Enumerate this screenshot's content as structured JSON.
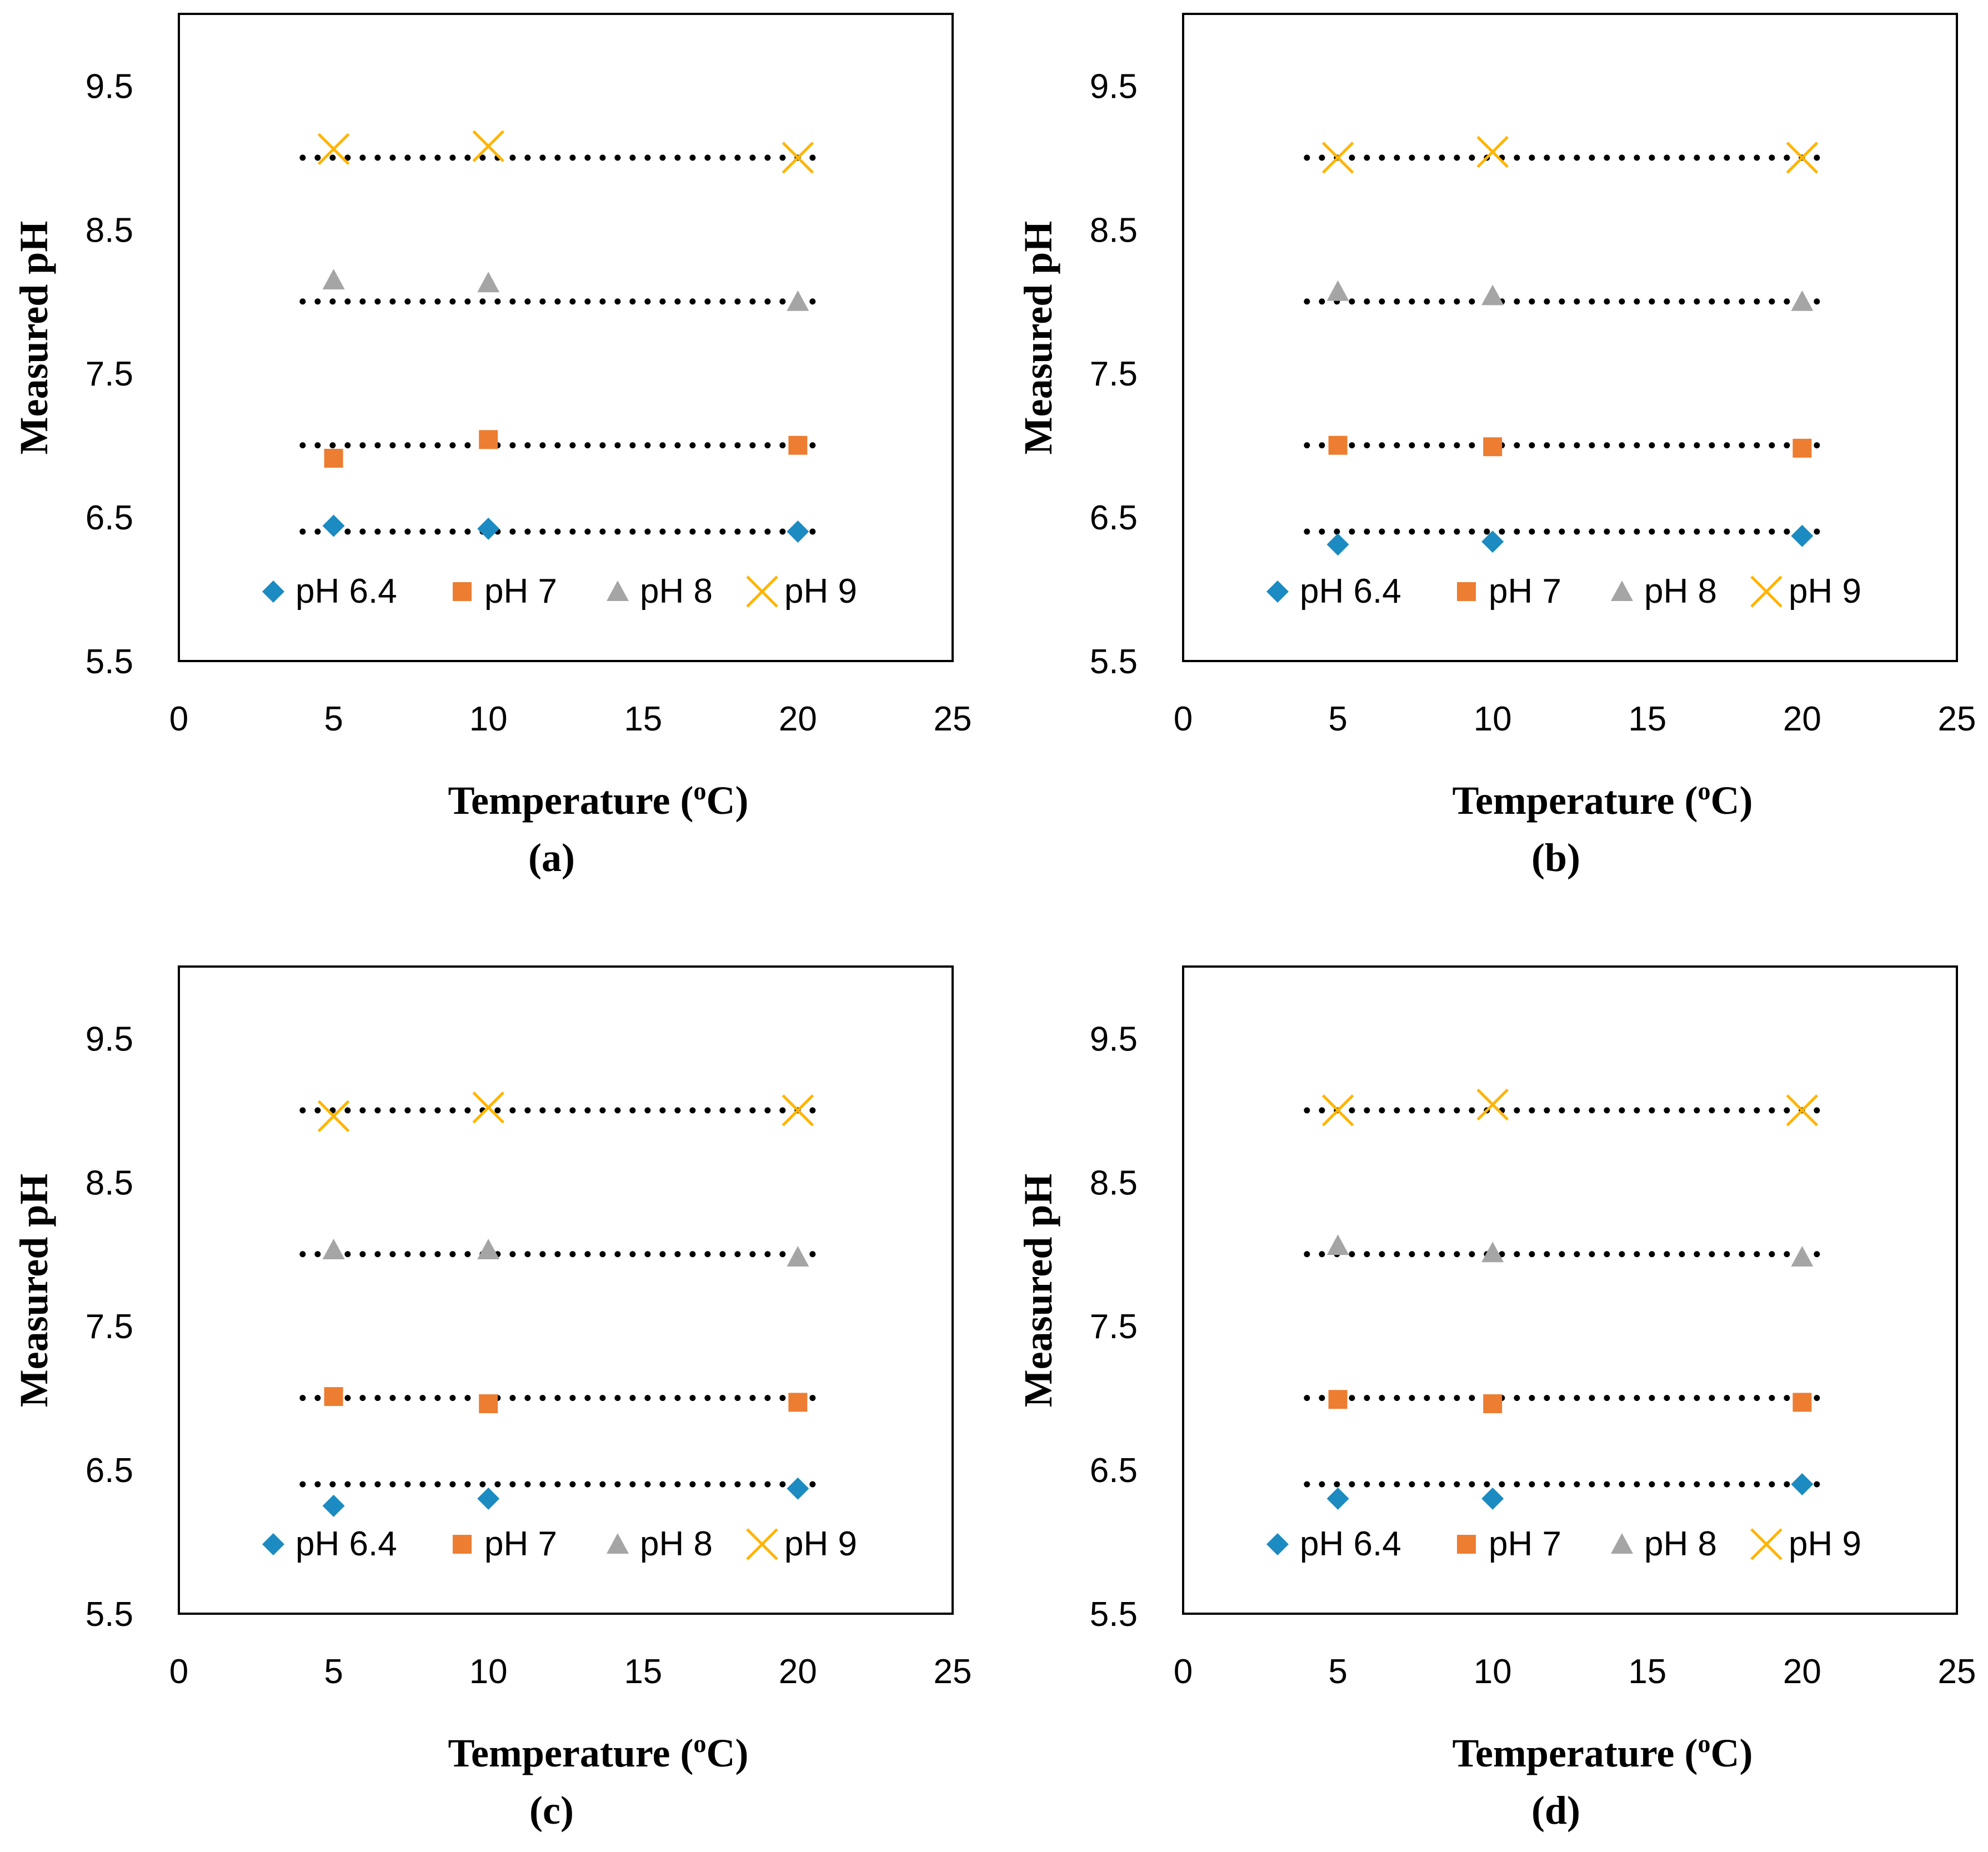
{
  "chart_data": [
    {
      "type": "scatter",
      "panel_label": "(a)",
      "xlabel": "Temperature (",
      "xlabel_sup": "o",
      "xlabel_suffix": "C)",
      "ylabel": "Measured pH",
      "xlim": [
        0,
        25
      ],
      "ylim": [
        5.5,
        10
      ],
      "xticks": [
        "0",
        "5",
        "10",
        "15",
        "20",
        "25"
      ],
      "yticks": [
        "5.5",
        "6.5",
        "7.5",
        "8.5",
        "9.5"
      ],
      "legend_position": "bottom",
      "series": [
        {
          "name": "pH 6.4",
          "marker": "diamond",
          "color": "#1B8BC1",
          "x": [
            5,
            10,
            20
          ],
          "y": [
            6.44,
            6.42,
            6.4
          ],
          "reference": 6.4
        },
        {
          "name": "pH 7",
          "marker": "square",
          "color": "#ED7D31",
          "x": [
            5,
            10,
            20
          ],
          "y": [
            6.91,
            7.04,
            7.0
          ],
          "reference": 7
        },
        {
          "name": "pH 8",
          "marker": "triangle",
          "color": "#A5A5A5",
          "x": [
            5,
            10,
            20
          ],
          "y": [
            8.15,
            8.13,
            8.0
          ],
          "reference": 8
        },
        {
          "name": "pH 9",
          "marker": "x",
          "color": "#FFB400",
          "x": [
            5,
            10,
            20
          ],
          "y": [
            9.06,
            9.08,
            9.0
          ],
          "reference": 9
        }
      ]
    },
    {
      "type": "scatter",
      "panel_label": "(b)",
      "xlabel": "Temperature (",
      "xlabel_sup": "o",
      "xlabel_suffix": "C)",
      "ylabel": "Measured pH",
      "xlim": [
        0,
        25
      ],
      "ylim": [
        5.5,
        10
      ],
      "xticks": [
        "0",
        "5",
        "10",
        "15",
        "20",
        "25"
      ],
      "yticks": [
        "5.5",
        "6.5",
        "7.5",
        "8.5",
        "9.5"
      ],
      "legend_position": "bottom",
      "series": [
        {
          "name": "pH 6.4",
          "marker": "diamond",
          "color": "#1B8BC1",
          "x": [
            5,
            10,
            20
          ],
          "y": [
            6.31,
            6.33,
            6.37
          ],
          "reference": 6.4
        },
        {
          "name": "pH 7",
          "marker": "square",
          "color": "#ED7D31",
          "x": [
            5,
            10,
            20
          ],
          "y": [
            7.0,
            6.99,
            6.98
          ],
          "reference": 7
        },
        {
          "name": "pH 8",
          "marker": "triangle",
          "color": "#A5A5A5",
          "x": [
            5,
            10,
            20
          ],
          "y": [
            8.07,
            8.04,
            8.0
          ],
          "reference": 8
        },
        {
          "name": "pH 9",
          "marker": "x",
          "color": "#FFB400",
          "x": [
            5,
            10,
            20
          ],
          "y": [
            9.0,
            9.04,
            9.0
          ],
          "reference": 9
        }
      ]
    },
    {
      "type": "scatter",
      "panel_label": "(c)",
      "xlabel": "Temperature (",
      "xlabel_sup": "o",
      "xlabel_suffix": "C)",
      "ylabel": "Measured pH",
      "xlim": [
        0,
        25
      ],
      "ylim": [
        5.5,
        10
      ],
      "xticks": [
        "0",
        "5",
        "10",
        "15",
        "20",
        "25"
      ],
      "yticks": [
        "5.5",
        "6.5",
        "7.5",
        "8.5",
        "9.5"
      ],
      "legend_position": "bottom",
      "series": [
        {
          "name": "pH 6.4",
          "marker": "diamond",
          "color": "#1B8BC1",
          "x": [
            5,
            10,
            20
          ],
          "y": [
            6.25,
            6.3,
            6.37
          ],
          "reference": 6.4
        },
        {
          "name": "pH 7",
          "marker": "square",
          "color": "#ED7D31",
          "x": [
            5,
            10,
            20
          ],
          "y": [
            7.01,
            6.96,
            6.97
          ],
          "reference": 7
        },
        {
          "name": "pH 8",
          "marker": "triangle",
          "color": "#A5A5A5",
          "x": [
            5,
            10,
            20
          ],
          "y": [
            8.03,
            8.03,
            7.98
          ],
          "reference": 8
        },
        {
          "name": "pH 9",
          "marker": "x",
          "color": "#FFB400",
          "x": [
            5,
            10,
            20
          ],
          "y": [
            8.96,
            9.02,
            9.0
          ],
          "reference": 9
        }
      ]
    },
    {
      "type": "scatter",
      "panel_label": "(d)",
      "xlabel": "Temperature (",
      "xlabel_sup": "o",
      "xlabel_suffix": "C)",
      "ylabel": "Measured pH",
      "xlim": [
        0,
        25
      ],
      "ylim": [
        5.5,
        10
      ],
      "xticks": [
        "0",
        "5",
        "10",
        "15",
        "20",
        "25"
      ],
      "yticks": [
        "5.5",
        "6.5",
        "7.5",
        "8.5",
        "9.5"
      ],
      "legend_position": "bottom",
      "series": [
        {
          "name": "pH 6.4",
          "marker": "diamond",
          "color": "#1B8BC1",
          "x": [
            5,
            10,
            20
          ],
          "y": [
            6.3,
            6.3,
            6.4
          ],
          "reference": 6.4
        },
        {
          "name": "pH 7",
          "marker": "square",
          "color": "#ED7D31",
          "x": [
            5,
            10,
            20
          ],
          "y": [
            6.99,
            6.96,
            6.97
          ],
          "reference": 7
        },
        {
          "name": "pH 8",
          "marker": "triangle",
          "color": "#A5A5A5",
          "x": [
            5,
            10,
            20
          ],
          "y": [
            8.06,
            8.01,
            7.98
          ],
          "reference": 8
        },
        {
          "name": "pH 9",
          "marker": "x",
          "color": "#FFB400",
          "x": [
            5,
            10,
            20
          ],
          "y": [
            9.0,
            9.04,
            9.0
          ],
          "reference": 9
        }
      ]
    }
  ]
}
